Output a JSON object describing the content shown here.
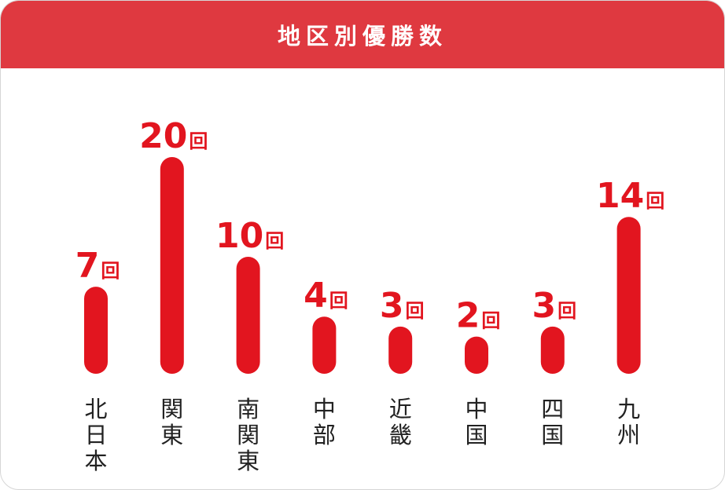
{
  "chart_data": {
    "type": "bar",
    "title": "地区別優勝数",
    "unit": "回",
    "categories": [
      "北日本",
      "関東",
      "南関東",
      "中部",
      "近畿",
      "中国",
      "四国",
      "九州"
    ],
    "values": [
      7,
      20,
      10,
      4,
      3,
      2,
      3,
      14
    ],
    "color": "#e2151f",
    "header_color": "#df3940",
    "grid": false
  }
}
